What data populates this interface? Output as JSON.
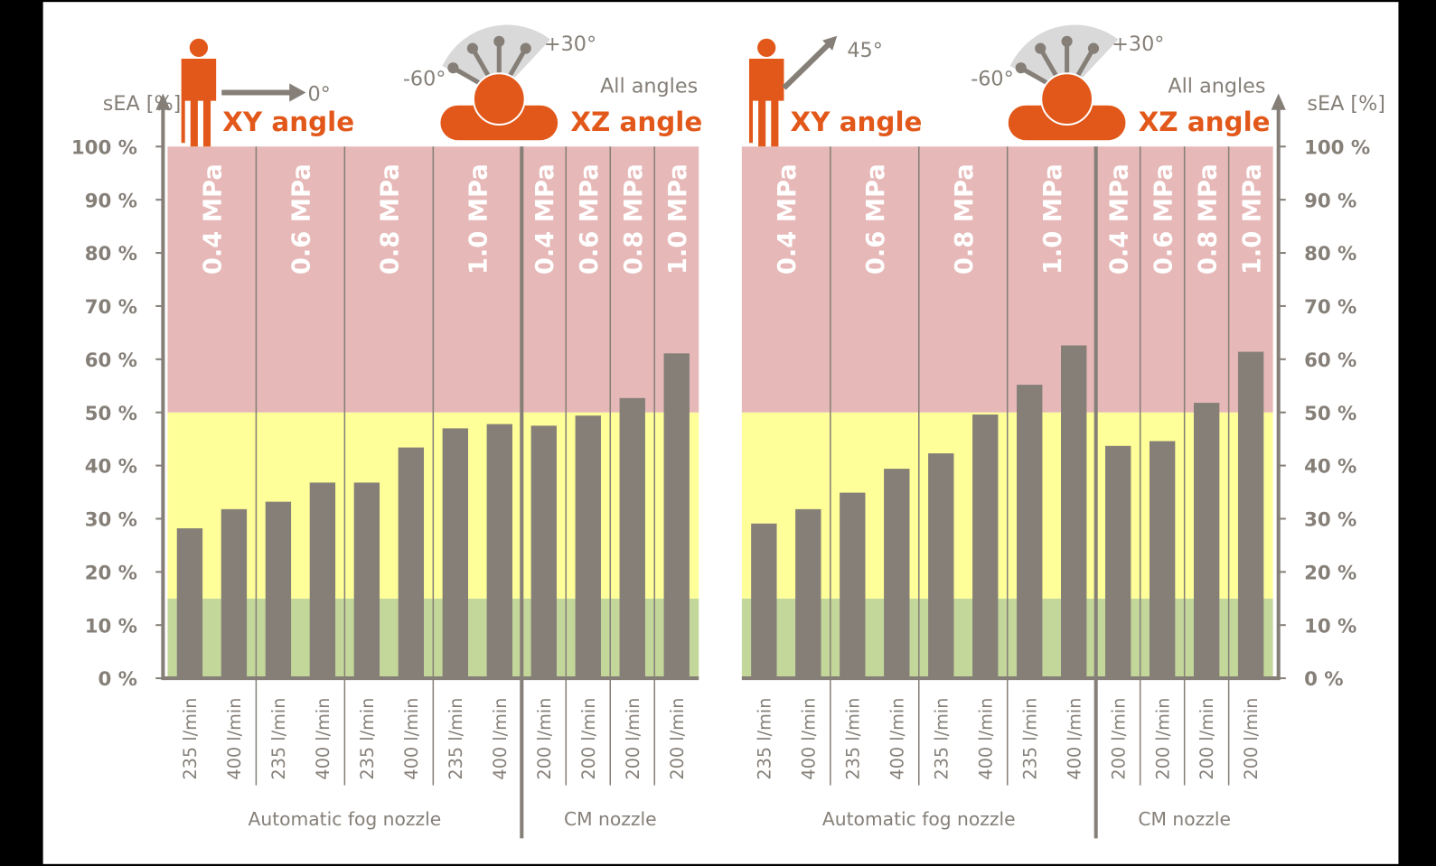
{
  "chart_data": [
    {
      "type": "bar",
      "ylabel": "sEA [%]",
      "ylim": [
        0,
        100
      ],
      "yticks": [
        "0 %",
        "10 %",
        "20 %",
        "30 %",
        "40 %",
        "50 %",
        "60 %",
        "70 %",
        "80 %",
        "90 %",
        "100 %"
      ],
      "xy_title": "XY angle",
      "xy_angle": "0°",
      "xz_title": "XZ angle",
      "xz_min": "-60°",
      "xz_max": "+30°",
      "xz_note": "All angles",
      "pressures": [
        "0.4 MPa",
        "0.6 MPa",
        "0.8 MPa",
        "1.0 MPa",
        "0.4 MPa",
        "0.6 MPa",
        "0.8 MPa",
        "1.0 MPa"
      ],
      "categories": [
        "235 l/min",
        "400 l/min",
        "235 l/min",
        "400 l/min",
        "235 l/min",
        "400 l/min",
        "235 l/min",
        "400 l/min",
        "200 l/min",
        "200 l/min",
        "200 l/min",
        "200 l/min"
      ],
      "groups": [
        "Automatic fog nozzle",
        "CM nozzle"
      ],
      "values": [
        28.2,
        31.8,
        33.2,
        36.8,
        36.8,
        43.4,
        47.0,
        47.8,
        47.5,
        49.4,
        52.7,
        61.1
      ]
    },
    {
      "type": "bar",
      "ylabel": "sEA [%]",
      "ylim": [
        0,
        100
      ],
      "yticks": [
        "0 %",
        "10 %",
        "20 %",
        "30 %",
        "40 %",
        "50 %",
        "60 %",
        "70 %",
        "80 %",
        "90 %",
        "100 %"
      ],
      "xy_title": "XY angle",
      "xy_angle": "45°",
      "xz_title": "XZ angle",
      "xz_min": "-60°",
      "xz_max": "+30°",
      "xz_note": "All angles",
      "pressures": [
        "0.4 MPa",
        "0.6 MPa",
        "0.8 MPa",
        "1.0 MPa",
        "0.4 MPa",
        "0.6 MPa",
        "0.8 MPa",
        "1.0 MPa"
      ],
      "categories": [
        "235 l/min",
        "400 l/min",
        "235 l/min",
        "400 l/min",
        "235 l/min",
        "400 l/min",
        "235 l/min",
        "400 l/min",
        "200 l/min",
        "200 l/min",
        "200 l/min",
        "200 l/min"
      ],
      "groups": [
        "Automatic fog nozzle",
        "CM nozzle"
      ],
      "values": [
        29.1,
        31.8,
        34.9,
        39.4,
        42.3,
        49.6,
        55.2,
        62.6,
        43.7,
        44.6,
        51.8,
        61.4
      ]
    }
  ],
  "bands": [
    {
      "from": 0,
      "to": 15,
      "color": "#c4d79b"
    },
    {
      "from": 15,
      "to": 50,
      "color": "#ffff99"
    },
    {
      "from": 50,
      "to": 100,
      "color": "#e6b8b7"
    }
  ],
  "colors": {
    "bar": "#857f78",
    "accent": "#e2581a",
    "axis": "#857f78"
  }
}
